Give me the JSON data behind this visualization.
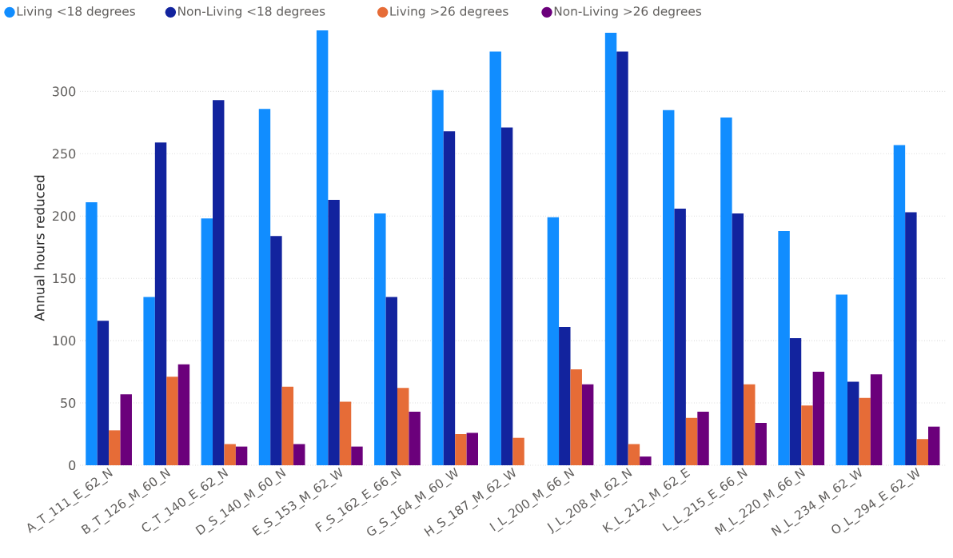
{
  "chart_data": {
    "type": "bar",
    "ylabel": "Annual hours reduced",
    "categories": [
      "A_T_111_E_62_N",
      "B_T_126_M_60_N",
      "C_T_140_E_62_N",
      "D_S_140_M_60_N",
      "E_S_153_M_62_W",
      "F_S_162_E_66_N",
      "G_S_164_M_60_W",
      "H_S_187_M_62_W",
      "I_L_200_M_66_N",
      "J_L_208_M_62_N",
      "K_L_212_M_62_E",
      "L_L_215_E_66_N",
      "M_L_220_M_66_N",
      "N_L_234_M_62_W",
      "O_L_294_E_62_W"
    ],
    "series": [
      {
        "name": "Living <18 degrees",
        "color": "#118dff",
        "values": [
          211,
          135,
          198,
          286,
          349,
          202,
          301,
          332,
          199,
          347,
          285,
          279,
          188,
          137,
          257
        ]
      },
      {
        "name": "Non-Living <18 degrees",
        "color": "#12239e",
        "values": [
          116,
          259,
          293,
          184,
          213,
          135,
          268,
          271,
          111,
          332,
          206,
          202,
          102,
          67,
          203
        ]
      },
      {
        "name": "Living >26 degrees",
        "color": "#e66c37",
        "values": [
          28,
          71,
          17,
          63,
          51,
          62,
          25,
          22,
          77,
          17,
          38,
          65,
          48,
          54,
          21
        ]
      },
      {
        "name": "Non-Living >26 degrees",
        "color": "#6b007b",
        "values": [
          57,
          81,
          15,
          17,
          15,
          43,
          26,
          null,
          65,
          7,
          43,
          34,
          75,
          73,
          31
        ]
      }
    ],
    "ylim": [
      0,
      349
    ],
    "yticks": [
      0,
      50,
      100,
      150,
      200,
      250,
      300
    ],
    "grid": "y",
    "legend": "top left"
  }
}
